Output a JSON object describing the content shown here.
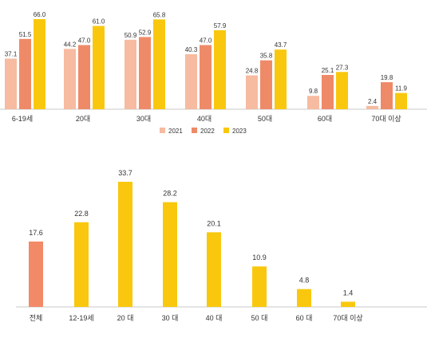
{
  "chart_data": [
    {
      "type": "bar",
      "categories": [
        "6-19세",
        "20대",
        "30대",
        "40대",
        "50대",
        "60대",
        "70대 이상"
      ],
      "series": [
        {
          "name": "2021",
          "color": "#F6BBA0",
          "values": [
            37.1,
            44.2,
            50.9,
            40.3,
            24.8,
            9.8,
            2.4
          ]
        },
        {
          "name": "2022",
          "color": "#EE8A68",
          "values": [
            51.5,
            47.0,
            52.9,
            47.0,
            35.8,
            25.1,
            19.8
          ]
        },
        {
          "name": "2023",
          "color": "#F9C80E",
          "values": [
            66.0,
            61.0,
            65.8,
            57.9,
            43.7,
            27.3,
            11.9
          ]
        }
      ],
      "legend_position": "bottom-center",
      "grid": false,
      "ylim": [
        0,
        70
      ]
    },
    {
      "type": "bar",
      "categories": [
        "전체",
        "12-19세",
        "20 대",
        "30 대",
        "40 대",
        "50 대",
        "60 대",
        "70대 이상"
      ],
      "values": [
        17.6,
        22.8,
        33.7,
        28.2,
        20.1,
        10.9,
        4.8,
        1.4
      ],
      "colors": [
        "#F28A68",
        "#F9C80E",
        "#F9C80E",
        "#F9C80E",
        "#F9C80E",
        "#F9C80E",
        "#F9C80E",
        "#F9C80E"
      ],
      "grid": false,
      "ylim": [
        0,
        36
      ]
    }
  ]
}
